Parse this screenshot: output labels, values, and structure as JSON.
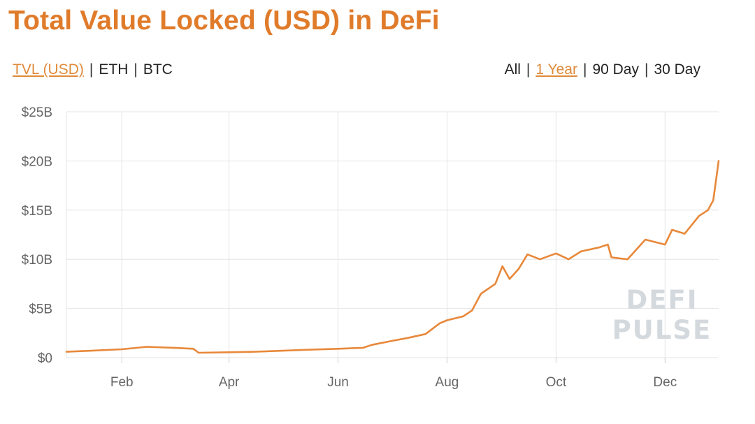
{
  "title": "Total Value Locked (USD) in DeFi",
  "metric_toggle": {
    "options": [
      "TVL (USD)",
      "ETH",
      "BTC"
    ],
    "selected": "TVL (USD)"
  },
  "range_toggle": {
    "options": [
      "All",
      "1 Year",
      "90 Day",
      "30 Day"
    ],
    "selected": "1 Year"
  },
  "watermark": {
    "line1": "DEFI",
    "line2": "PULSE"
  },
  "colors": {
    "accent": "#e07b2a",
    "line": "#e8883a",
    "grid": "#e4e4e4",
    "watermark": "#d4d9de"
  },
  "chart_data": {
    "type": "line",
    "ylabel": "",
    "xlabel": "",
    "ylim": [
      0,
      25
    ],
    "y_ticks": [
      0,
      5,
      10,
      15,
      20,
      25
    ],
    "y_tick_labels": [
      "$0",
      "$5B",
      "$10B",
      "$15B",
      "$20B",
      "$25B"
    ],
    "xlim": [
      "2020-01-01",
      "2020-12-31"
    ],
    "x_ticks": [
      "2020-02-01",
      "2020-04-01",
      "2020-06-01",
      "2020-08-01",
      "2020-10-01",
      "2020-12-01"
    ],
    "x_tick_labels": [
      "Feb",
      "Apr",
      "Jun",
      "Aug",
      "Oct",
      "Dec"
    ],
    "grid": true,
    "series": [
      {
        "values": [
          [
            "2020-01-01",
            0.6
          ],
          [
            "2020-01-15",
            0.7
          ],
          [
            "2020-02-01",
            0.85
          ],
          [
            "2020-02-15",
            1.1
          ],
          [
            "2020-03-01",
            1.0
          ],
          [
            "2020-03-12",
            0.9
          ],
          [
            "2020-03-15",
            0.5
          ],
          [
            "2020-04-01",
            0.55
          ],
          [
            "2020-04-15",
            0.6
          ],
          [
            "2020-05-01",
            0.7
          ],
          [
            "2020-05-15",
            0.8
          ],
          [
            "2020-06-01",
            0.9
          ],
          [
            "2020-06-15",
            1.0
          ],
          [
            "2020-06-20",
            1.3
          ],
          [
            "2020-07-01",
            1.7
          ],
          [
            "2020-07-10",
            2.0
          ],
          [
            "2020-07-20",
            2.4
          ],
          [
            "2020-07-28",
            3.5
          ],
          [
            "2020-08-01",
            3.8
          ],
          [
            "2020-08-10",
            4.2
          ],
          [
            "2020-08-15",
            4.8
          ],
          [
            "2020-08-20",
            6.5
          ],
          [
            "2020-08-28",
            7.5
          ],
          [
            "2020-09-01",
            9.3
          ],
          [
            "2020-09-05",
            8.0
          ],
          [
            "2020-09-10",
            9.0
          ],
          [
            "2020-09-15",
            10.5
          ],
          [
            "2020-09-22",
            10.0
          ],
          [
            "2020-10-01",
            10.6
          ],
          [
            "2020-10-08",
            10.0
          ],
          [
            "2020-10-15",
            10.8
          ],
          [
            "2020-10-25",
            11.2
          ],
          [
            "2020-10-30",
            11.5
          ],
          [
            "2020-11-01",
            10.2
          ],
          [
            "2020-11-10",
            10.0
          ],
          [
            "2020-11-20",
            12.0
          ],
          [
            "2020-12-01",
            11.5
          ],
          [
            "2020-12-05",
            13.0
          ],
          [
            "2020-12-12",
            12.6
          ],
          [
            "2020-12-20",
            14.4
          ],
          [
            "2020-12-25",
            15.0
          ],
          [
            "2020-12-28",
            16.0
          ],
          [
            "2020-12-31",
            20.0
          ]
        ]
      }
    ]
  }
}
